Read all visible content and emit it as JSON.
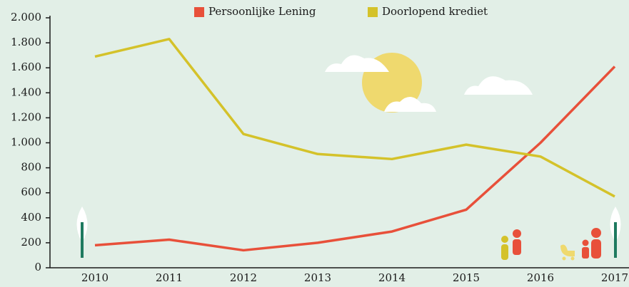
{
  "chart_data": {
    "type": "line",
    "categories": [
      "2010",
      "2011",
      "2012",
      "2013",
      "2014",
      "2015",
      "2016",
      "2017"
    ],
    "series": [
      {
        "name": "Persoonlijke Lening",
        "color": "#e8503a",
        "values": [
          180,
          225,
          140,
          200,
          290,
          465,
          1000,
          1610
        ]
      },
      {
        "name": "Doorlopend krediet",
        "color": "#d4c22a",
        "values": [
          1690,
          1830,
          1070,
          910,
          870,
          985,
          890,
          570
        ]
      }
    ],
    "ylim": [
      0,
      2000
    ],
    "yticks": [
      0,
      200,
      400,
      600,
      800,
      {
        "value": 1000,
        "label": "1.000"
      },
      {
        "value": 1200,
        "label": "1.200"
      },
      {
        "value": 1400,
        "label": "1.400"
      },
      {
        "value": 1600,
        "label": "1.600"
      },
      {
        "value": 1800,
        "label": "1.800"
      },
      {
        "value": 2000,
        "label": "2.000"
      }
    ]
  }
}
